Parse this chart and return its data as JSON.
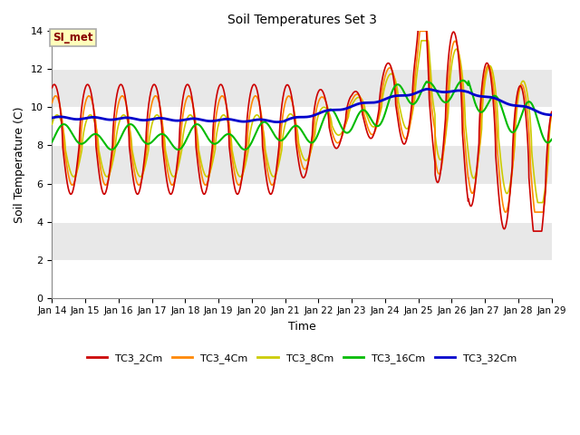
{
  "title": "Soil Temperatures Set 3",
  "xlabel": "Time",
  "ylabel": "Soil Temperature (C)",
  "ylim": [
    0,
    14
  ],
  "xlim": [
    0,
    360
  ],
  "annotation_text": "SI_met",
  "legend_labels": [
    "TC3_2Cm",
    "TC3_4Cm",
    "TC3_8Cm",
    "TC3_16Cm",
    "TC3_32Cm"
  ],
  "colors": {
    "TC3_2Cm": "#cc0000",
    "TC3_4Cm": "#ff8800",
    "TC3_8Cm": "#cccc00",
    "TC3_16Cm": "#00bb00",
    "TC3_32Cm": "#0000cc"
  },
  "xtick_positions": [
    0,
    24,
    48,
    72,
    96,
    120,
    144,
    168,
    192,
    216,
    240,
    264,
    288,
    312,
    336,
    360
  ],
  "xtick_labels": [
    "Jan 14",
    "Jan 15",
    "Jan 16",
    "Jan 17",
    "Jan 18",
    "Jan 19",
    "Jan 20",
    "Jan 21",
    "Jan 22",
    "Jan 23",
    "Jan 24",
    "Jan 25",
    "Jan 26",
    "Jan 27",
    "Jan 28",
    "Jan 29"
  ],
  "ytick_positions": [
    0,
    2,
    4,
    6,
    8,
    10,
    12,
    14
  ],
  "bg_white": "#ffffff",
  "bg_gray": "#e8e8e8"
}
